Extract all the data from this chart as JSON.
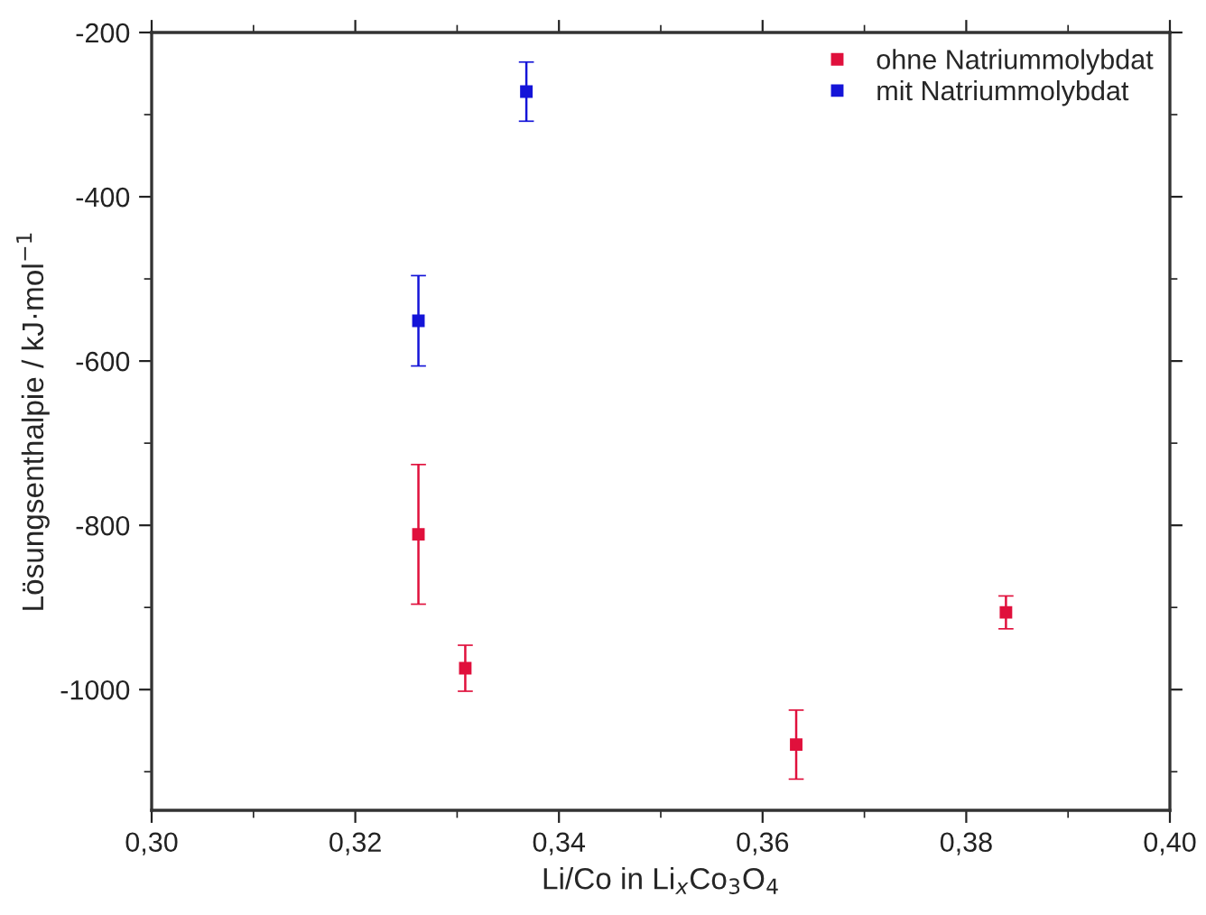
{
  "chart_data": {
    "type": "scatter",
    "xlabel": "Li/Co in Li$_{x}$Co$_{3}$O$_{4}$",
    "ylabel": "Lösungsenthalpie / kJ·mol$^{−1}$",
    "series": [
      {
        "name": "ohne Natriummolybdat",
        "color": "#e0103c",
        "x": [
          0.3262,
          0.3308,
          0.3633,
          0.3839
        ],
        "values": [
          -811,
          -974,
          -1067,
          -906
        ],
        "errors": [
          85,
          28,
          42,
          20
        ]
      },
      {
        "name": "mit Natriummolybdat",
        "color": "#1414d8",
        "x": [
          0.3368,
          0.3262
        ],
        "values": [
          -272,
          -551
        ],
        "errors": [
          36,
          55
        ]
      }
    ],
    "marker": "square",
    "xlim": [
      0.3,
      0.4
    ],
    "xticks": [
      {
        "value": 0.3,
        "label": "0,30"
      },
      {
        "value": 0.32,
        "label": "0,32"
      },
      {
        "value": 0.34,
        "label": "0,34"
      },
      {
        "value": 0.36,
        "label": "0,36"
      },
      {
        "value": 0.38,
        "label": "0,38"
      },
      {
        "value": 0.4,
        "label": "0,40"
      }
    ],
    "ylim": [
      -1147,
      -200
    ],
    "yticks": [
      -1000,
      -800,
      -600,
      -400,
      -200
    ],
    "grid": false,
    "legend": "top right"
  }
}
